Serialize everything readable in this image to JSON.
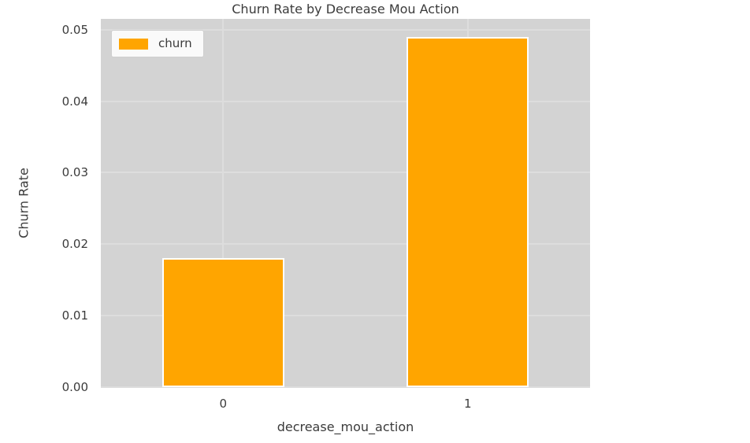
{
  "chart_data": {
    "type": "bar",
    "title": "Churn Rate by Decrease Mou Action",
    "xlabel": "decrease_mou_action",
    "ylabel": "Churn Rate",
    "categories": [
      "0",
      "1"
    ],
    "series": [
      {
        "name": "churn",
        "values": [
          0.018,
          0.049
        ]
      }
    ],
    "ytick_labels": [
      "0.00",
      "0.01",
      "0.02",
      "0.03",
      "0.04",
      "0.05"
    ],
    "yticks": [
      0.0,
      0.01,
      0.02,
      0.03,
      0.04,
      0.05
    ],
    "ylim": [
      0,
      0.0515
    ],
    "grid": true,
    "legend": {
      "position": "upper-left",
      "entries": [
        "churn"
      ]
    },
    "colors": {
      "bar_fill": "#FFA500",
      "bar_edge": "#FFFFFF",
      "plot_bg": "#D3D3D3",
      "grid_line": "#DDDDDD",
      "figure_bg": "#FFFFFF",
      "text": "#3B3B3B"
    }
  }
}
